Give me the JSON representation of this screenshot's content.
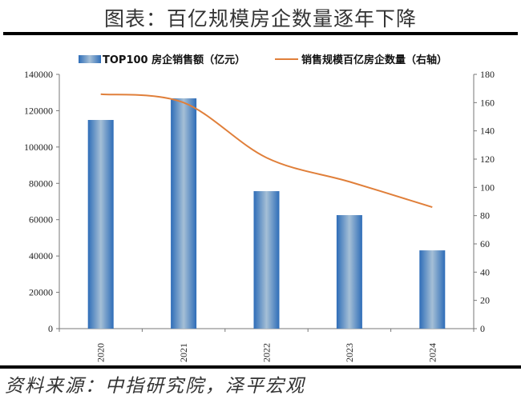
{
  "title": "图表：百亿规模房企数量逐年下降",
  "source": "资料来源：中指研究院，泽平宏观",
  "legend": {
    "bar_label": "TOP100 房企销售额（亿元）",
    "line_label": "销售规模百亿房企数量（右轴）"
  },
  "colors": {
    "bar_edge": "#2E6DB8",
    "bar_center": "#A5BFD6",
    "line": "#E07F3A",
    "axis": "#777777"
  },
  "axes": {
    "left_ticks": [
      "0",
      "20000",
      "40000",
      "60000",
      "80000",
      "100000",
      "120000",
      "140000"
    ],
    "right_ticks": [
      "0",
      "20",
      "40",
      "60",
      "80",
      "100",
      "120",
      "140",
      "160",
      "180"
    ],
    "x_ticks": [
      "2020",
      "2021",
      "2022",
      "2023",
      "2024"
    ]
  },
  "chart_data": {
    "type": "bar",
    "title": "图表：百亿规模房企数量逐年下降",
    "categories": [
      "2020",
      "2021",
      "2022",
      "2023",
      "2024"
    ],
    "series": [
      {
        "name": "TOP100 房企销售额（亿元）",
        "type": "bar",
        "axis": "left",
        "values": [
          114900,
          126800,
          75700,
          62500,
          43100
        ]
      },
      {
        "name": "销售规模百亿房企数量（右轴）",
        "type": "line",
        "axis": "right",
        "values": [
          166,
          160,
          121,
          104,
          86
        ]
      }
    ],
    "xlabel": "",
    "ylabel": "",
    "ylim": [
      0,
      140000
    ],
    "y2lim": [
      0,
      180
    ],
    "grid": false,
    "legend_position": "top"
  }
}
